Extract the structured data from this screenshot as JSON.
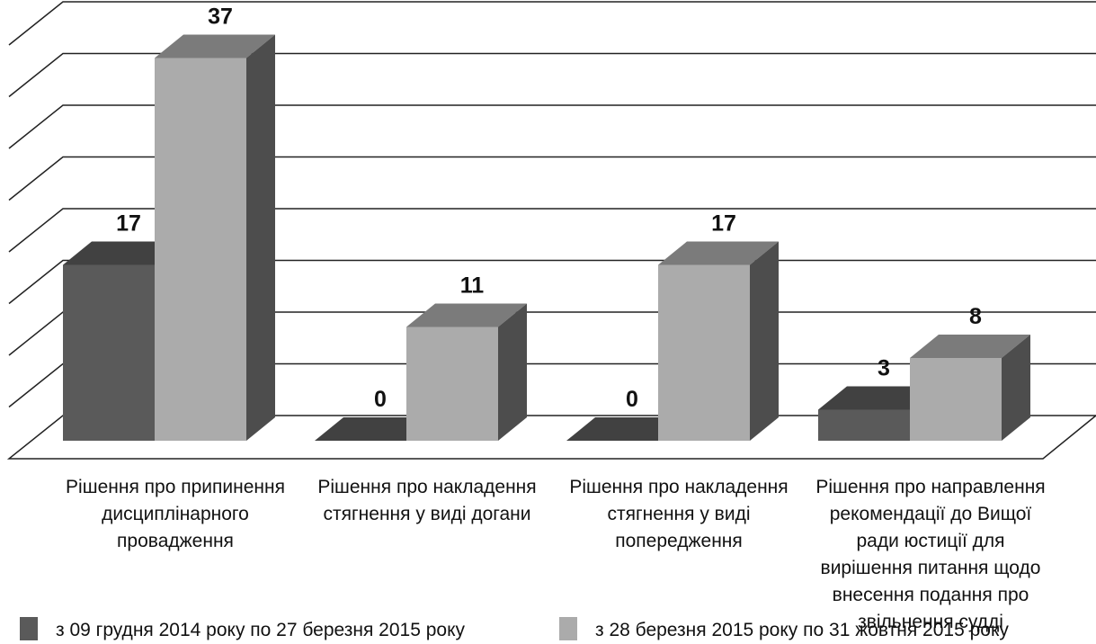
{
  "chart_data": {
    "type": "bar3d",
    "categories": [
      "Рішення про припинення дисциплінарного провадження",
      "Рішення про накладення стягнення у виді догани",
      "Рішення про накладення стягнення у виді попередження",
      "Рішення про направлення рекомендації до Вищої ради юстиції для вирішення питання щодо внесення подання про звільнення судді"
    ],
    "series": [
      {
        "name": "з 09 грудня 2014 року по 27 березня 2015 року",
        "color": "#5a5a5a",
        "values": [
          17,
          0,
          0,
          3
        ]
      },
      {
        "name": "з 28 березня 2015 року по 31 жовтня 2015 року",
        "color": "#ababab",
        "values": [
          37,
          11,
          17,
          8
        ]
      }
    ],
    "ylim": [
      0,
      40
    ],
    "yticks": [
      0,
      5,
      10,
      15,
      20,
      25,
      30,
      35,
      40
    ],
    "grid": true,
    "legend": "bottom"
  }
}
